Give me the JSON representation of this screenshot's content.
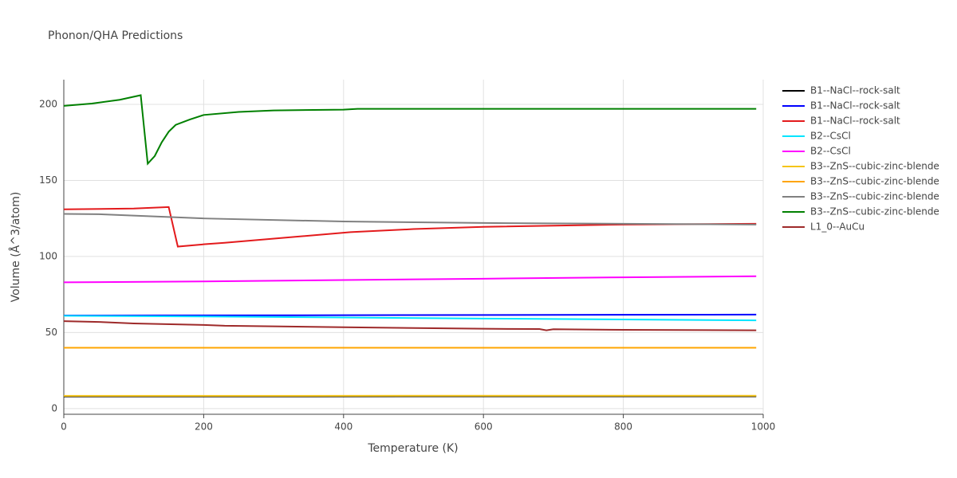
{
  "chart_data": {
    "type": "line",
    "title": "Phonon/QHA Predictions",
    "x_label": "Temperature (K)",
    "y_label": "Volume (Å^3/atom)",
    "xlim": [
      0,
      1000
    ],
    "ylim": [
      -3.7,
      216.2
    ],
    "xticks": [
      0,
      200,
      400,
      600,
      800,
      1000
    ],
    "yticks": [
      0,
      50,
      100,
      150,
      200
    ],
    "grid": true,
    "series": [
      {
        "name": "B1--NaCl--rock-salt",
        "color": "#000000",
        "x": [
          0,
          990
        ],
        "values": [
          8.0,
          8.1
        ]
      },
      {
        "name": "B1--NaCl--rock-salt",
        "color": "#0000ff",
        "x": [
          0,
          400,
          990
        ],
        "values": [
          61.2,
          61.4,
          61.8
        ]
      },
      {
        "name": "B1--NaCl--rock-salt",
        "color": "#e31a1c",
        "x": [
          0,
          100,
          150,
          163,
          200,
          230,
          410,
          500,
          600,
          800,
          990
        ],
        "values": [
          131,
          131.5,
          132.5,
          106.5,
          108,
          109,
          116,
          118,
          119.5,
          121,
          121.5
        ]
      },
      {
        "name": "B2--CsCl",
        "color": "#00e5ff",
        "x": [
          0,
          200,
          400,
          600,
          800,
          990
        ],
        "values": [
          61,
          60.6,
          59.9,
          59.2,
          58.6,
          58
        ]
      },
      {
        "name": "B2--CsCl",
        "color": "#ff00ff",
        "x": [
          0,
          200,
          400,
          600,
          800,
          990
        ],
        "values": [
          83,
          83.6,
          84.5,
          85.4,
          86.3,
          87
        ]
      },
      {
        "name": "B3--ZnS--cubic-zinc-blende",
        "color": "#f5c518",
        "x": [
          0,
          990
        ],
        "values": [
          8.4,
          8.5
        ]
      },
      {
        "name": "B3--ZnS--cubic-zinc-blende",
        "color": "#ffa500",
        "x": [
          0,
          990
        ],
        "values": [
          40,
          40
        ]
      },
      {
        "name": "B3--ZnS--cubic-zinc-blende",
        "color": "#808080",
        "x": [
          0,
          50,
          200,
          400,
          600,
          800,
          990
        ],
        "values": [
          128,
          127.8,
          125,
          123,
          122,
          121.5,
          121
        ]
      },
      {
        "name": "B3--ZnS--cubic-zinc-blende",
        "color": "#008000",
        "x": [
          0,
          40,
          80,
          110,
          120,
          130,
          140,
          150,
          160,
          180,
          200,
          250,
          300,
          400,
          420,
          990
        ],
        "values": [
          199,
          200.5,
          203,
          206,
          161,
          166,
          175,
          182,
          186.5,
          190,
          193,
          195,
          196,
          196.5,
          197,
          197
        ]
      },
      {
        "name": "L1_0--AuCu",
        "color": "#9e2a2a",
        "x": [
          0,
          50,
          100,
          200,
          230,
          400,
          600,
          680,
          690,
          700,
          800,
          990
        ],
        "values": [
          57.5,
          57,
          56,
          55,
          54.5,
          53.5,
          52.5,
          52.3,
          51.5,
          52.2,
          51.8,
          51.5
        ]
      }
    ]
  }
}
